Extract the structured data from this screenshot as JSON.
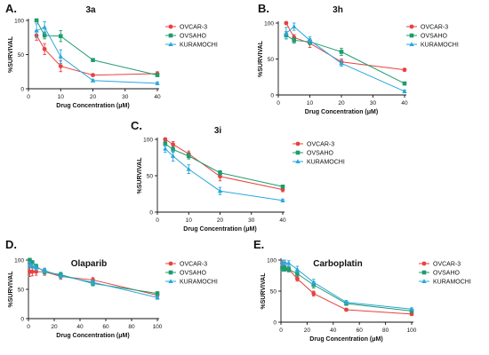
{
  "chart_data": [
    {
      "type": "line",
      "panel": "A.",
      "title": "3a",
      "xlabel": "Drug Concentration (μM)",
      "ylabel": "%SURVIVAL",
      "xlim": [
        0,
        40
      ],
      "ylim": [
        0,
        100
      ],
      "xticks": [
        0,
        10,
        20,
        30,
        40
      ],
      "yticks": [
        0,
        50,
        100
      ],
      "legend": "top-right",
      "series": [
        {
          "name": "OVCAR-3",
          "color": "#e8423f",
          "marker": "circle",
          "x": [
            2.5,
            5,
            10,
            20,
            40
          ],
          "y": [
            78,
            58,
            33,
            20,
            22
          ],
          "err": [
            7,
            8,
            8,
            2,
            3
          ]
        },
        {
          "name": "OVSAHO",
          "color": "#1e9c6e",
          "marker": "square",
          "x": [
            2.5,
            5,
            10,
            20,
            40
          ],
          "y": [
            100,
            78,
            77,
            42,
            20
          ],
          "err": [
            2,
            5,
            8,
            2,
            2
          ]
        },
        {
          "name": "KURAMOCHI",
          "color": "#2aa7dc",
          "marker": "triangle",
          "x": [
            2.5,
            5,
            10,
            20,
            40
          ],
          "y": [
            85,
            90,
            47,
            12,
            8
          ],
          "err": [
            10,
            8,
            10,
            2,
            2
          ]
        }
      ]
    },
    {
      "type": "line",
      "panel": "B.",
      "title": "3h",
      "xlabel": "Drug Concentration (μM)",
      "ylabel": "%SURVIVAL",
      "xlim": [
        0,
        40
      ],
      "ylim": [
        0,
        100
      ],
      "xticks": [
        0,
        10,
        20,
        30,
        40
      ],
      "yticks": [
        0,
        50,
        100
      ],
      "legend": "top-right",
      "series": [
        {
          "name": "OVCAR-3",
          "color": "#e8423f",
          "marker": "circle",
          "x": [
            2.5,
            5,
            10,
            20,
            40
          ],
          "y": [
            100,
            80,
            72,
            46,
            35
          ],
          "err": [
            2,
            4,
            6,
            4,
            2
          ]
        },
        {
          "name": "OVSAHO",
          "color": "#1e9c6e",
          "marker": "square",
          "x": [
            2.5,
            5,
            10,
            20,
            40
          ],
          "y": [
            83,
            76,
            74,
            60,
            16
          ],
          "err": [
            5,
            4,
            4,
            5,
            2
          ]
        },
        {
          "name": "KURAMOCHI",
          "color": "#2aa7dc",
          "marker": "triangle",
          "x": [
            2.5,
            5,
            10,
            20,
            40
          ],
          "y": [
            86,
            95,
            76,
            44,
            5
          ],
          "err": [
            8,
            5,
            5,
            4,
            2
          ]
        }
      ]
    },
    {
      "type": "line",
      "panel": "C.",
      "title": "3i",
      "xlabel": "Drug Concentration (μM)",
      "ylabel": "%SURVIVAL",
      "xlim": [
        0,
        40
      ],
      "ylim": [
        0,
        100
      ],
      "xticks": [
        0,
        10,
        20,
        30,
        40
      ],
      "yticks": [
        0,
        50,
        100
      ],
      "legend": "top-right",
      "series": [
        {
          "name": "OVCAR-3",
          "color": "#e8423f",
          "marker": "circle",
          "x": [
            2.5,
            5,
            10,
            20,
            40
          ],
          "y": [
            100,
            93,
            80,
            49,
            31
          ],
          "err": [
            2,
            4,
            4,
            6,
            3
          ]
        },
        {
          "name": "OVSAHO",
          "color": "#1e9c6e",
          "marker": "square",
          "x": [
            2.5,
            5,
            10,
            20,
            40
          ],
          "y": [
            94,
            86,
            77,
            54,
            35
          ],
          "err": [
            3,
            4,
            4,
            3,
            2
          ]
        },
        {
          "name": "KURAMOCHI",
          "color": "#2aa7dc",
          "marker": "triangle",
          "x": [
            2.5,
            5,
            10,
            20,
            40
          ],
          "y": [
            87,
            77,
            59,
            29,
            16
          ],
          "err": [
            5,
            7,
            6,
            5,
            2
          ]
        }
      ]
    },
    {
      "type": "line",
      "panel": "D.",
      "title": "Olaparib",
      "xlabel": "Drug Concentration (μM)",
      "ylabel": "%SURVIVAL",
      "xlim": [
        0,
        100
      ],
      "ylim": [
        0,
        100
      ],
      "xticks": [
        0,
        20,
        40,
        60,
        80,
        100
      ],
      "yticks": [
        0,
        50,
        100
      ],
      "legend": "top-right",
      "series": [
        {
          "name": "OVCAR-3",
          "color": "#e8423f",
          "marker": "circle",
          "x": [
            1,
            3,
            6,
            12.5,
            25,
            50,
            100
          ],
          "y": [
            80,
            80,
            80,
            80,
            72,
            66,
            40
          ],
          "err": [
            8,
            7,
            6,
            6,
            5,
            4,
            3
          ]
        },
        {
          "name": "OVSAHO",
          "color": "#1e9c6e",
          "marker": "square",
          "x": [
            1,
            3,
            6,
            12.5,
            25,
            50,
            100
          ],
          "y": [
            100,
            96,
            89,
            80,
            75,
            60,
            43
          ],
          "err": [
            3,
            3,
            4,
            4,
            4,
            4,
            3
          ]
        },
        {
          "name": "KURAMOCHI",
          "color": "#2aa7dc",
          "marker": "triangle",
          "x": [
            1,
            3,
            6,
            12.5,
            25,
            50,
            100
          ],
          "y": [
            93,
            90,
            87,
            82,
            73,
            62,
            36
          ],
          "err": [
            4,
            4,
            4,
            4,
            4,
            4,
            3
          ]
        }
      ]
    },
    {
      "type": "line",
      "panel": "E.",
      "title": "Carboplatin",
      "xlabel": "Drug Concentration (μM)",
      "ylabel": "%SURVIVAL",
      "xlim": [
        0,
        100
      ],
      "ylim": [
        0,
        100
      ],
      "xticks": [
        0,
        20,
        40,
        60,
        80,
        100
      ],
      "yticks": [
        0,
        50,
        100
      ],
      "legend": "top-right",
      "series": [
        {
          "name": "OVCAR-3",
          "color": "#e8423f",
          "marker": "circle",
          "x": [
            1,
            3,
            6,
            12.5,
            25,
            50,
            100
          ],
          "y": [
            95,
            87,
            85,
            70,
            46,
            20,
            13
          ],
          "err": [
            4,
            4,
            4,
            4,
            4,
            2,
            2
          ]
        },
        {
          "name": "OVSAHO",
          "color": "#1e9c6e",
          "marker": "square",
          "x": [
            1,
            3,
            6,
            12.5,
            25,
            50,
            100
          ],
          "y": [
            87,
            86,
            85,
            78,
            60,
            30,
            18
          ],
          "err": [
            5,
            4,
            4,
            4,
            5,
            3,
            2
          ]
        },
        {
          "name": "KURAMOCHI",
          "color": "#2aa7dc",
          "marker": "triangle",
          "x": [
            1,
            3,
            6,
            12.5,
            25,
            50,
            100
          ],
          "y": [
            96,
            96,
            95,
            85,
            64,
            32,
            21
          ],
          "err": [
            4,
            4,
            4,
            5,
            5,
            3,
            2
          ]
        }
      ]
    }
  ]
}
